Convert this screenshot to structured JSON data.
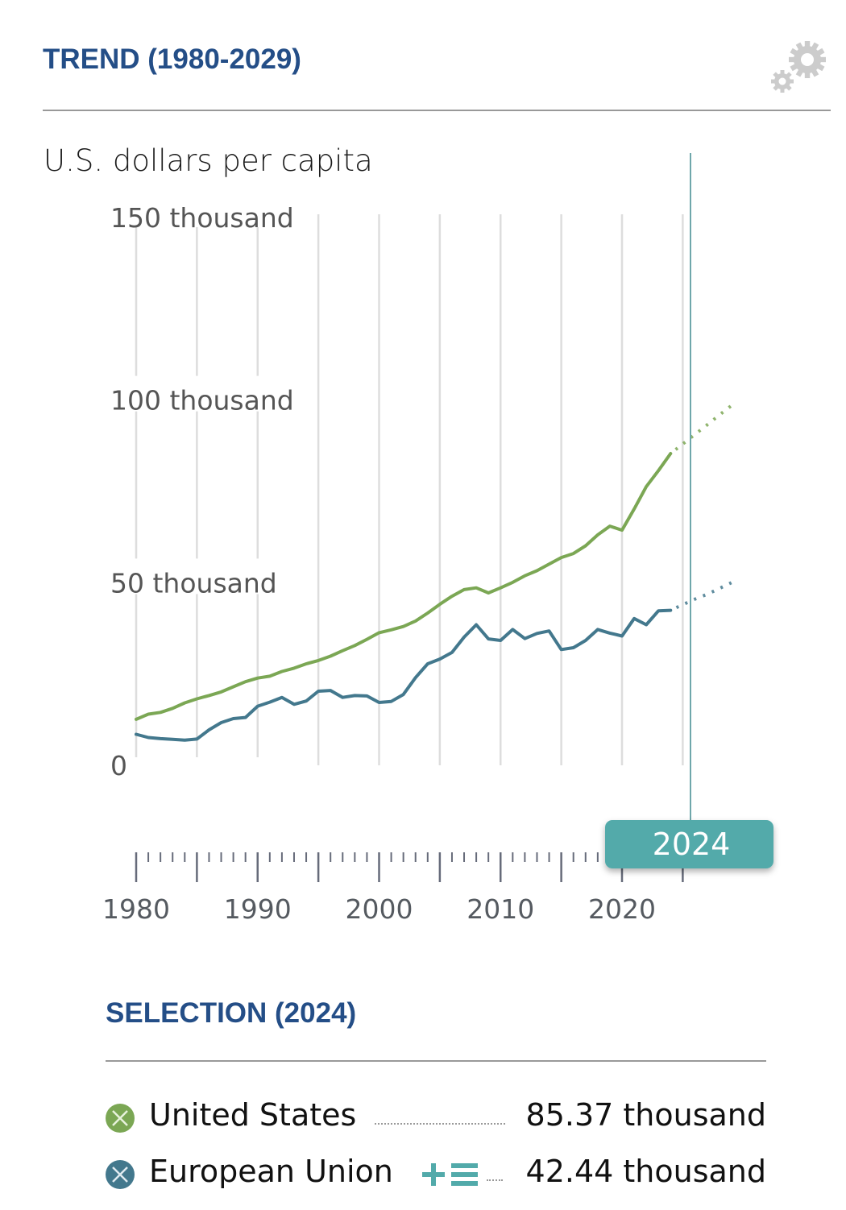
{
  "header": {
    "title": "TREND (1980-2029)",
    "settings_icon": "gears-icon"
  },
  "colors": {
    "title": "#244e87",
    "united_states": "#7ba754",
    "european_union": "#43788d",
    "selection": "#52aaaa",
    "grid": "#dddddd",
    "axis_ticks": "#666b7a"
  },
  "chart_data": {
    "type": "line",
    "title": "TREND (1980-2029)",
    "ylabel": "U.S. dollars per capita",
    "xlabel": "",
    "xlim": [
      1980,
      2029
    ],
    "ylim": [
      0,
      150000
    ],
    "y_ticks": [
      {
        "value": 0,
        "label": "0"
      },
      {
        "value": 50000,
        "label": "50 thousand"
      },
      {
        "value": 100000,
        "label": "100 thousand"
      },
      {
        "value": 150000,
        "label": "150 thousand"
      }
    ],
    "x_ticks": [
      {
        "value": 1980,
        "label": "1980"
      },
      {
        "value": 1990,
        "label": "1990"
      },
      {
        "value": 2000,
        "label": "2000"
      },
      {
        "value": 2010,
        "label": "2010"
      },
      {
        "value": 2020,
        "label": "2020"
      }
    ],
    "grid": "vertical, every 5 years",
    "legend": "bottom",
    "selected_year": 2024,
    "x": [
      1980,
      1981,
      1982,
      1983,
      1984,
      1985,
      1986,
      1987,
      1988,
      1989,
      1990,
      1991,
      1992,
      1993,
      1994,
      1995,
      1996,
      1997,
      1998,
      1999,
      2000,
      2001,
      2002,
      2003,
      2004,
      2005,
      2006,
      2007,
      2008,
      2009,
      2010,
      2011,
      2012,
      2013,
      2014,
      2015,
      2016,
      2017,
      2018,
      2019,
      2020,
      2021,
      2022,
      2023,
      2024
    ],
    "series": [
      {
        "name": "United States",
        "values": [
          12.6,
          14.0,
          14.5,
          15.6,
          17.1,
          18.2,
          19.1,
          20.1,
          21.5,
          22.9,
          23.9,
          24.4,
          25.7,
          26.6,
          27.8,
          28.7,
          29.9,
          31.4,
          32.8,
          34.5,
          36.3,
          37.1,
          38.0,
          39.5,
          41.7,
          44.1,
          46.3,
          48.1,
          48.6,
          47.2,
          48.6,
          50.1,
          51.9,
          53.3,
          55.1,
          56.9,
          58.0,
          60.1,
          63.1,
          65.5,
          64.4,
          70.2,
          76.3,
          80.7,
          85.37
        ],
        "projection": {
          "x": [
            2025,
            2026,
            2027,
            2028,
            2029
          ],
          "values": [
            88.0,
            90.6,
            93.2,
            95.9,
            98.5
          ]
        }
      },
      {
        "name": "European Union",
        "values": [
          8.5,
          7.6,
          7.3,
          7.1,
          6.9,
          7.2,
          9.7,
          11.7,
          12.8,
          13.1,
          16.2,
          17.3,
          18.6,
          16.7,
          17.6,
          20.3,
          20.5,
          18.6,
          19.1,
          19.0,
          17.2,
          17.5,
          19.4,
          24.0,
          27.8,
          29.1,
          30.9,
          35.1,
          38.5,
          34.6,
          34.2,
          37.2,
          34.7,
          36.1,
          36.8,
          31.7,
          32.2,
          34.2,
          37.2,
          36.2,
          35.4,
          40.2,
          38.5,
          42.3,
          42.44
        ],
        "projection": {
          "x": [
            2025,
            2026,
            2027,
            2028,
            2029
          ],
          "values": [
            44.0,
            45.5,
            46.8,
            48.4,
            50.0
          ]
        }
      }
    ],
    "value_units": "thousand U.S. dollars per capita"
  },
  "axis": {
    "unit_label": "U.S. dollars per capita",
    "selected_year_badge": "2024"
  },
  "selection": {
    "title": "SELECTION (2024)",
    "items": [
      {
        "name": "United States",
        "value": "85.37 thousand",
        "icon": "remove-country-icon"
      },
      {
        "name": "European Union",
        "value": "42.44 thousand",
        "icon": "remove-country-icon",
        "extra_icons": [
          "add-icon",
          "list-icon"
        ]
      }
    ]
  }
}
